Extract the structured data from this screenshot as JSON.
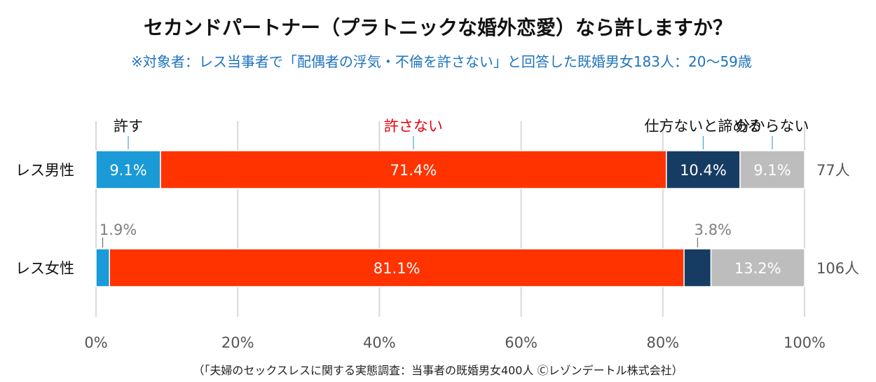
{
  "title": "セカンドパートナー（プラトニックな婚外恋愛）なら許しますか？",
  "subtitle": "※対象者：レス当事者で「配偶者の浮気・不倫を許さない」と回答した既婚男女183人：20～59歳",
  "source": "（「夫婦のセックスレスに関する実態調査：当事者の既婚男女400人 Ⓒレゾンデートル株式会社）",
  "colors": {
    "yurusu": "#1a9ad6",
    "yurusanai": "#ff3300",
    "akirameru": "#173c63",
    "wakaranai": "#bdbdbd",
    "grid": "#d9d9d9",
    "category_label_default": "#111111",
    "category_label_highlight": "#e8000b",
    "outside_value": "#7f7f7f"
  },
  "chart_data": {
    "type": "bar",
    "orientation": "horizontal-stacked-100",
    "categories": [
      "レス男性",
      "レス女性"
    ],
    "series": [
      {
        "name": "許す",
        "values": [
          9.1,
          1.9
        ]
      },
      {
        "name": "許さない",
        "values": [
          71.4,
          81.1
        ]
      },
      {
        "name": "仕方ないと諦める",
        "values": [
          10.4,
          3.8
        ]
      },
      {
        "name": "分からない",
        "values": [
          9.1,
          13.2
        ]
      }
    ],
    "value_labels": [
      [
        "9.1%",
        "71.4%",
        "10.4%",
        "9.1%"
      ],
      [
        "1.9%",
        "81.1%",
        "3.8%",
        "13.2%"
      ]
    ],
    "totals": [
      "77人",
      "106人"
    ],
    "xticks": [
      "0%",
      "20%",
      "40%",
      "60%",
      "80%",
      "100%"
    ],
    "xlim": [
      0,
      100
    ],
    "grid": true,
    "legend": "labels above the first bar"
  }
}
